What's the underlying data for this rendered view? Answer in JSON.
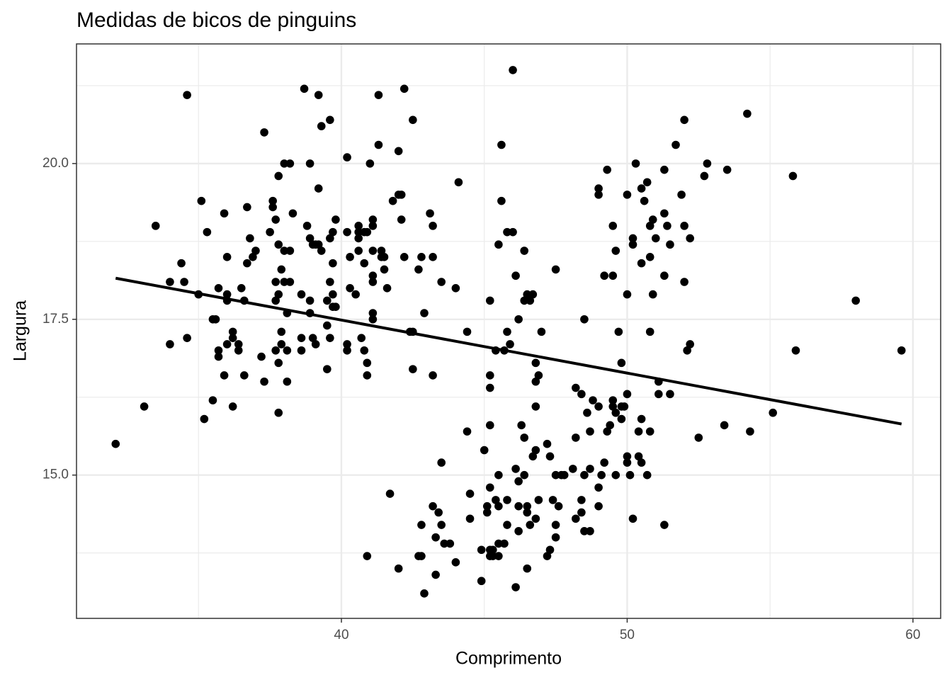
{
  "chart_data": {
    "type": "scatter",
    "title": "Medidas de bicos de pinguins",
    "xlabel": "Comprimento",
    "ylabel": "Largura",
    "x": [
      32.1,
      33.1,
      33.5,
      34.0,
      34.0,
      34.4,
      34.5,
      34.6,
      34.6,
      35.0,
      35.1,
      35.2,
      35.3,
      35.5,
      35.5,
      35.6,
      35.7,
      35.7,
      35.7,
      35.9,
      35.9,
      36.0,
      36.0,
      36.0,
      36.0,
      36.2,
      36.2,
      36.2,
      36.4,
      36.4,
      36.5,
      36.6,
      36.6,
      36.7,
      36.7,
      36.8,
      36.9,
      37.0,
      37.2,
      37.3,
      37.3,
      37.6,
      37.7,
      37.7,
      37.8,
      37.8,
      37.5,
      37.6,
      37.7,
      37.7,
      37.8,
      37.8,
      37.8,
      37.9,
      37.9,
      37.9,
      38.0,
      38.0,
      38.0,
      38.1,
      38.1,
      38.1,
      38.2,
      38.2,
      38.2,
      38.3,
      38.6,
      38.6,
      38.6,
      38.7,
      38.8,
      38.9,
      38.9,
      38.9,
      38.9,
      39.0,
      39.1,
      39.0,
      39.2,
      39.1,
      39.2,
      39.2,
      39.3,
      39.3,
      39.5,
      39.5,
      39.5,
      39.6,
      39.6,
      39.6,
      39.6,
      39.7,
      39.7,
      39.7,
      39.7,
      39.8,
      39.8,
      40.2,
      40.2,
      40.2,
      40.2,
      40.3,
      40.3,
      40.5,
      40.6,
      40.6,
      40.6,
      40.7,
      40.6,
      40.8,
      40.8,
      40.8,
      40.9,
      40.9,
      40.9,
      41.0,
      41.1,
      41.1,
      41.1,
      41.1,
      41.1,
      41.1,
      41.1,
      41.3,
      41.3,
      41.4,
      41.4,
      41.5,
      41.5,
      41.6,
      41.8,
      42.0,
      42.0,
      42.1,
      42.1,
      42.2,
      42.2,
      42.4,
      42.5,
      42.5,
      42.5,
      42.7,
      42.8,
      42.9,
      43.1,
      43.2,
      43.2,
      43.2,
      43.5,
      44.0,
      44.1,
      44.4,
      45.2,
      45.6,
      45.6,
      45.5,
      45.8,
      46.0,
      46.1,
      46.2,
      46.4,
      46.5,
      46.6,
      46.7,
      46.8,
      47.0,
      47.5,
      45.8,
      45.7,
      45.9,
      45.4,
      46.0,
      46.4,
      48.5,
      49.0,
      49.0,
      49.2,
      49.3,
      49.5,
      49.5,
      49.6,
      49.7,
      49.8,
      50.0,
      50.0,
      50.2,
      50.2,
      50.3,
      50.5,
      50.5,
      50.6,
      50.7,
      50.8,
      50.8,
      50.8,
      50.9,
      50.9,
      51.0,
      51.3,
      51.3,
      51.3,
      51.4,
      51.5,
      51.7,
      51.9,
      52.0,
      52.0,
      52.0,
      52.2,
      52.2,
      52.1,
      52.7,
      52.8,
      53.5,
      54.2,
      55.8,
      58.0,
      55.9,
      59.6,
      51.1,
      51.1,
      51.5,
      52.5,
      53.4,
      54.3,
      55.1,
      40.9,
      41.7,
      42.0,
      42.7,
      42.8,
      42.9,
      42.8,
      43.2,
      43.3,
      43.3,
      43.4,
      43.5,
      43.5,
      43.6,
      43.8,
      44.0,
      44.4,
      44.5,
      44.5,
      44.9,
      44.9,
      45.0,
      45.1,
      45.1,
      45.2,
      45.2,
      45.2,
      45.2,
      45.2,
      45.2,
      45.3,
      45.3,
      45.4,
      45.5,
      45.5,
      45.5,
      45.5,
      45.7,
      45.8,
      45.8,
      46.1,
      46.1,
      46.2,
      46.2,
      46.2,
      46.3,
      46.4,
      46.4,
      46.5,
      46.5,
      46.5,
      46.6,
      46.8,
      46.8,
      46.8,
      46.9,
      46.9,
      46.7,
      46.8,
      47.2,
      47.2,
      47.3,
      47.3,
      47.4,
      47.5,
      47.5,
      47.5,
      47.6,
      47.7,
      47.8,
      48.1,
      48.2,
      48.2,
      48.2,
      48.4,
      48.4,
      48.4,
      48.5,
      48.5,
      48.6,
      48.7,
      48.7,
      48.7,
      48.8,
      49.0,
      49.0,
      49.0,
      49.1,
      49.2,
      49.3,
      49.4,
      49.5,
      49.5,
      49.6,
      49.6,
      49.8,
      49.8,
      49.9,
      50.0,
      50.0,
      50.0,
      50.1,
      50.2,
      50.4,
      50.4,
      50.5,
      50.5,
      50.7,
      50.8,
      51.3
    ],
    "y": [
      15.5,
      16.1,
      19.0,
      17.1,
      18.1,
      18.4,
      18.1,
      21.1,
      17.2,
      17.9,
      19.4,
      15.9,
      18.9,
      16.2,
      17.5,
      17.5,
      18.0,
      17.0,
      16.9,
      19.2,
      16.6,
      17.9,
      17.8,
      18.5,
      17.1,
      16.1,
      17.3,
      17.2,
      17.1,
      17.0,
      18.0,
      16.6,
      17.8,
      18.4,
      19.3,
      18.8,
      18.5,
      18.6,
      16.9,
      16.5,
      20.5,
      19.4,
      18.1,
      17.8,
      16.8,
      17.9,
      18.9,
      19.3,
      19.1,
      17.0,
      18.7,
      19.8,
      16.0,
      18.3,
      17.3,
      17.1,
      20.0,
      18.6,
      18.1,
      17.0,
      16.5,
      17.6,
      18.6,
      20.0,
      18.1,
      19.2,
      17.9,
      17.2,
      17.0,
      21.2,
      19.0,
      17.8,
      18.8,
      20.0,
      17.6,
      17.2,
      17.1,
      18.7,
      18.7,
      18.7,
      19.6,
      21.1,
      18.6,
      20.6,
      17.4,
      16.7,
      17.8,
      18.8,
      17.2,
      18.1,
      20.7,
      17.7,
      18.4,
      18.9,
      17.9,
      17.7,
      19.1,
      17.0,
      17.1,
      18.9,
      20.1,
      18.0,
      18.5,
      17.9,
      18.9,
      18.6,
      18.8,
      17.2,
      19.0,
      17.0,
      18.4,
      18.9,
      16.8,
      16.6,
      18.9,
      20.0,
      18.2,
      18.6,
      19.1,
      18.1,
      17.5,
      17.6,
      19.0,
      21.1,
      20.3,
      18.6,
      18.5,
      18.3,
      18.5,
      18.0,
      19.4,
      20.2,
      19.5,
      19.1,
      19.5,
      18.5,
      21.2,
      17.3,
      17.3,
      16.7,
      20.7,
      18.3,
      18.5,
      17.6,
      19.2,
      18.5,
      19.0,
      16.6,
      18.1,
      18.0,
      19.7,
      17.3,
      17.8,
      20.3,
      19.4,
      18.7,
      18.9,
      18.9,
      18.2,
      17.5,
      18.6,
      17.9,
      17.8,
      17.9,
      16.8,
      17.3,
      18.3,
      17.3,
      17.0,
      17.1,
      17.0,
      21.5,
      17.8,
      17.5,
      19.5,
      19.6,
      18.2,
      19.9,
      19.0,
      18.2,
      18.6,
      17.3,
      16.8,
      19.5,
      17.9,
      18.8,
      18.7,
      20.0,
      19.6,
      18.4,
      19.4,
      19.7,
      19.0,
      18.5,
      17.3,
      19.1,
      17.9,
      18.8,
      19.2,
      18.2,
      19.9,
      19.0,
      18.7,
      20.3,
      19.5,
      18.1,
      19.0,
      20.7,
      18.8,
      17.1,
      17.0,
      19.8,
      20.0,
      19.9,
      20.8,
      19.8,
      17.8,
      17.0,
      17.0,
      16.5,
      16.3,
      16.3,
      15.6,
      15.8,
      15.7,
      16.0,
      13.7,
      14.7,
      13.5,
      13.7,
      14.2,
      13.1,
      13.7,
      14.5,
      14.0,
      13.4,
      14.4,
      14.2,
      15.2,
      13.9,
      13.9,
      13.6,
      15.7,
      14.3,
      14.7,
      13.3,
      13.8,
      15.4,
      14.5,
      14.4,
      13.8,
      13.7,
      14.8,
      15.8,
      16.4,
      16.6,
      13.7,
      13.8,
      14.6,
      15.0,
      13.7,
      13.9,
      14.5,
      13.9,
      14.6,
      14.2,
      13.2,
      15.1,
      14.5,
      14.1,
      14.9,
      15.8,
      15.6,
      15.0,
      14.5,
      14.4,
      13.5,
      14.2,
      15.4,
      16.1,
      14.3,
      14.6,
      16.6,
      15.3,
      16.5,
      15.5,
      13.7,
      15.3,
      13.8,
      14.6,
      14.0,
      15.0,
      14.2,
      14.5,
      15.0,
      15.0,
      15.1,
      14.3,
      15.6,
      16.4,
      14.6,
      14.4,
      16.3,
      14.1,
      15.0,
      16.0,
      14.1,
      15.1,
      15.7,
      16.2,
      16.1,
      14.8,
      14.5,
      15.0,
      15.2,
      15.7,
      15.8,
      16.2,
      16.1,
      15.0,
      16.0,
      15.9,
      16.1,
      16.1,
      15.2,
      15.3,
      16.3,
      15.0,
      14.3,
      15.3,
      15.7,
      15.2,
      15.9,
      15.0,
      15.7,
      14.2
    ],
    "color": "#000000",
    "fit_line": {
      "x": [
        32.1,
        59.6
      ],
      "y": [
        18.16,
        15.82
      ],
      "color": "#000000"
    },
    "xlim": [
      30.73,
      60.97
    ],
    "ylim": [
      12.7,
      21.92
    ],
    "xticks": [
      40,
      50,
      60
    ],
    "yticks": [
      {
        "value": 15,
        "label": "15.0"
      },
      17.5,
      {
        "value": 20,
        "label": "20.0"
      }
    ],
    "grid": true
  }
}
